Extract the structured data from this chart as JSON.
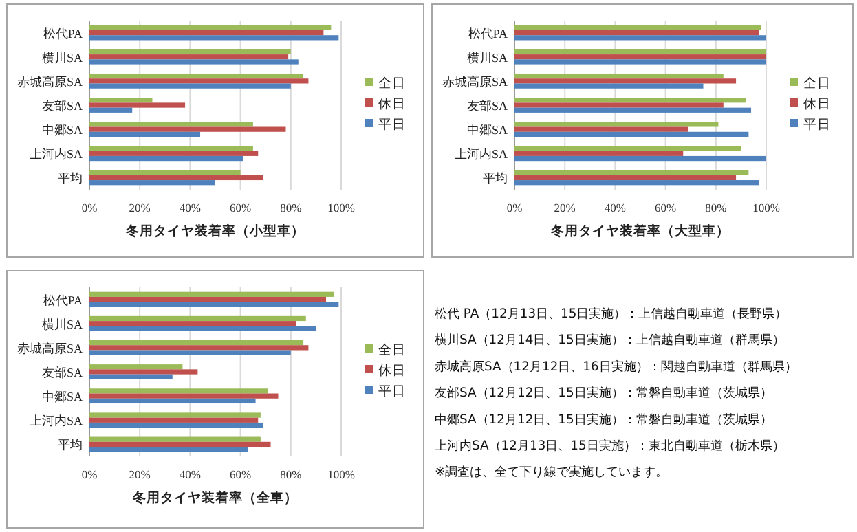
{
  "chart_data": [
    {
      "type": "bar",
      "orientation": "horizontal",
      "xlabel": "冬用タイヤ装着率（小型車）",
      "categories": [
        "松代PA",
        "横川SA",
        "赤城高原SA",
        "友部SA",
        "中郷SA",
        "上河内SA",
        "平均"
      ],
      "series": [
        {
          "name": "全日",
          "color": "#9bbb59",
          "values": [
            96,
            80,
            85,
            25,
            65,
            65,
            60
          ]
        },
        {
          "name": "休日",
          "color": "#c0504d",
          "values": [
            93,
            79,
            87,
            38,
            78,
            67,
            69
          ]
        },
        {
          "name": "平日",
          "color": "#4f81bd",
          "values": [
            99,
            83,
            80,
            17,
            44,
            61,
            50
          ]
        }
      ],
      "xlim": [
        0,
        100
      ],
      "xticks": [
        {
          "value": 0,
          "label": "0%"
        },
        {
          "value": 20,
          "label": "20%"
        },
        {
          "value": 40,
          "label": "40%"
        },
        {
          "value": 60,
          "label": "60%"
        },
        {
          "value": 80,
          "label": "80%"
        },
        {
          "value": 100,
          "label": "100%"
        }
      ],
      "grid": "x",
      "legend": "right"
    },
    {
      "type": "bar",
      "orientation": "horizontal",
      "xlabel": "冬用タイヤ装着率（大型車）",
      "categories": [
        "松代PA",
        "横川SA",
        "赤城高原SA",
        "友部SA",
        "中郷SA",
        "上河内SA",
        "平均"
      ],
      "series": [
        {
          "name": "全日",
          "color": "#9bbb59",
          "values": [
            98,
            100,
            83,
            92,
            81,
            90,
            93
          ]
        },
        {
          "name": "休日",
          "color": "#c0504d",
          "values": [
            97,
            100,
            88,
            83,
            69,
            67,
            88
          ]
        },
        {
          "name": "平日",
          "color": "#4f81bd",
          "values": [
            100,
            100,
            75,
            94,
            93,
            100,
            97
          ]
        }
      ],
      "xlim": [
        0,
        100
      ],
      "xticks": [
        {
          "value": 0,
          "label": "0%"
        },
        {
          "value": 20,
          "label": "20%"
        },
        {
          "value": 40,
          "label": "40%"
        },
        {
          "value": 60,
          "label": "60%"
        },
        {
          "value": 80,
          "label": "80%"
        },
        {
          "value": 100,
          "label": "100%"
        }
      ],
      "grid": "x",
      "legend": "right"
    },
    {
      "type": "bar",
      "orientation": "horizontal",
      "xlabel": "冬用タイヤ装着率（全車）",
      "categories": [
        "松代PA",
        "横川SA",
        "赤城高原SA",
        "友部SA",
        "中郷SA",
        "上河内SA",
        "平均"
      ],
      "series": [
        {
          "name": "全日",
          "color": "#9bbb59",
          "values": [
            97,
            86,
            85,
            37,
            71,
            68,
            68
          ]
        },
        {
          "name": "休日",
          "color": "#c0504d",
          "values": [
            94,
            82,
            87,
            43,
            75,
            67,
            72
          ]
        },
        {
          "name": "平日",
          "color": "#4f81bd",
          "values": [
            99,
            90,
            80,
            33,
            66,
            69,
            63
          ]
        }
      ],
      "xlim": [
        0,
        100
      ],
      "xticks": [
        {
          "value": 0,
          "label": "0%"
        },
        {
          "value": 20,
          "label": "20%"
        },
        {
          "value": 40,
          "label": "40%"
        },
        {
          "value": 60,
          "label": "60%"
        },
        {
          "value": 80,
          "label": "80%"
        },
        {
          "value": 100,
          "label": "100%"
        }
      ],
      "grid": "x",
      "legend": "right"
    },
    {
      "type": "other",
      "annotations": [
        "松代 PA（12月13日、15日実施）：上信越自動車道（長野県）",
        "横川SA（12月14日、15日実施）：上信越自動車道（群馬県）",
        "赤城高原SA（12月12日、16日実施）：関越自動車道（群馬県）",
        "友部SA（12月12日、15日実施）：常磐自動車道（茨城県）",
        "中郷SA（12月12日、15日実施）：常磐自動車道（茨城県）",
        "上河内SA（12月13日、15日実施）：東北自動車道（栃木県）",
        "※調査は、全て下り線で実施しています。"
      ]
    }
  ]
}
